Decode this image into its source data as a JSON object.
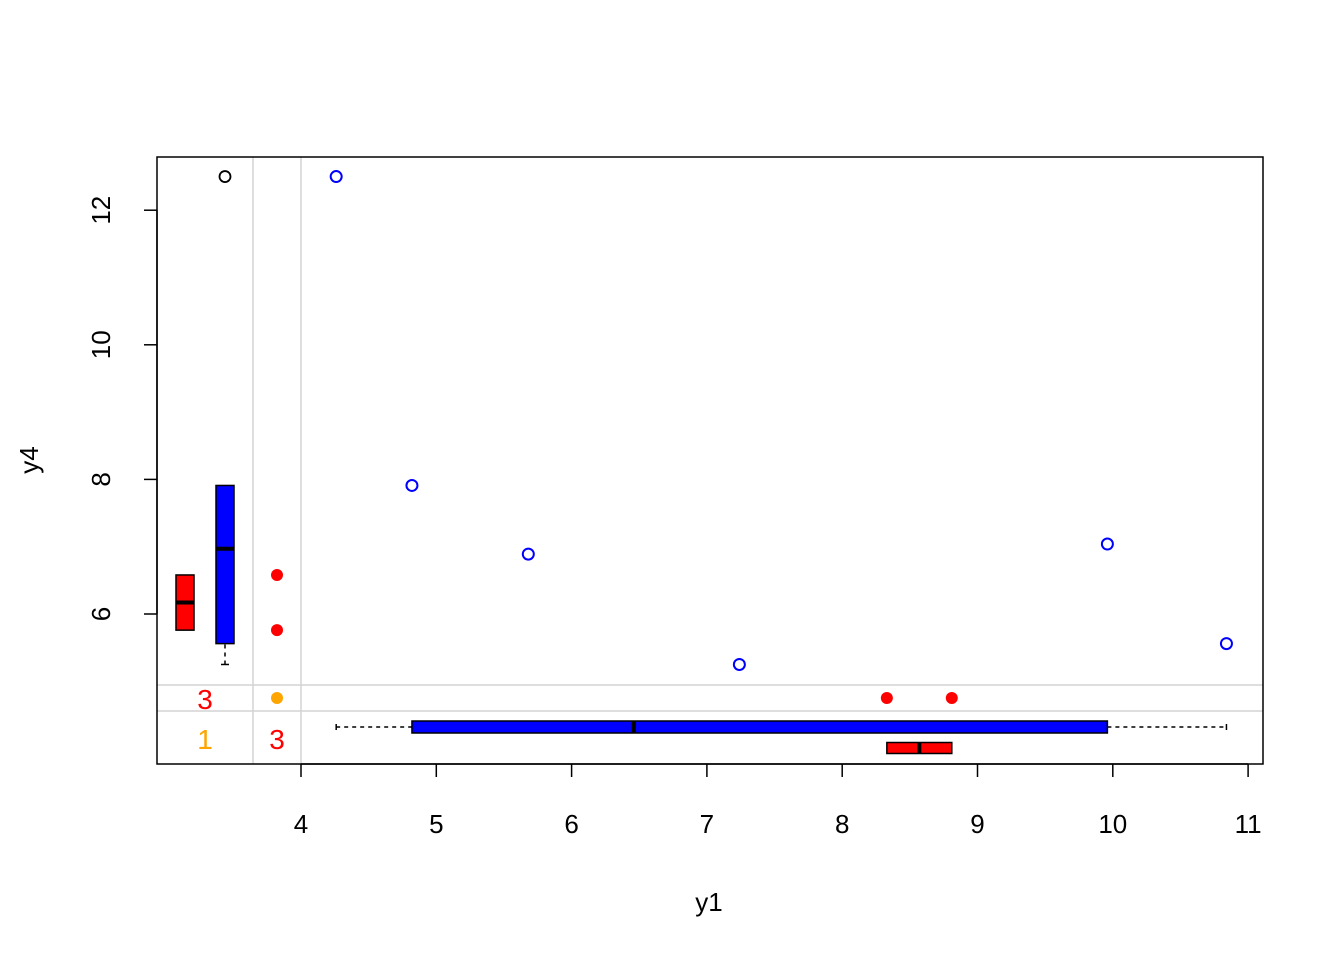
{
  "chart_data": {
    "type": "scatter",
    "title": "",
    "xlabel": "y1",
    "ylabel": "y4",
    "xlim": [
      2.93,
      11.1
    ],
    "ylim": [
      4.4,
      12.8
    ],
    "x_ticks": [
      4,
      5,
      6,
      7,
      8,
      9,
      10,
      11
    ],
    "x_tick_labels": [
      "4",
      "5",
      "6",
      "7",
      "8",
      "9",
      "10",
      "11"
    ],
    "y_ticks": [
      6,
      8,
      10,
      12
    ],
    "y_tick_labels": [
      "6",
      "8",
      "10",
      "12"
    ],
    "grid": false,
    "points": [
      {
        "x": 4.26,
        "y": 12.5
      },
      {
        "x": 4.82,
        "y": 7.91
      },
      {
        "x": 5.68,
        "y": 6.89
      },
      {
        "x": 7.24,
        "y": 5.25
      },
      {
        "x": 9.96,
        "y": 7.04
      },
      {
        "x": 10.84,
        "y": 5.56
      }
    ],
    "points_color": "#0000ff",
    "missing_y_points_x": [
      8.33,
      8.81
    ],
    "missing_x_points_y": [
      5.76,
      6.58
    ],
    "missing_both_count": 1,
    "missing_color": "#ff0000",
    "missing_both_color": "#ffa500",
    "counts": {
      "missing_y": "3",
      "missing_both": "1",
      "missing_x": "3"
    },
    "x_box_observed": {
      "min": 4.26,
      "q1": 4.82,
      "median": 6.46,
      "q3": 9.96,
      "max": 10.84
    },
    "x_box_missing": {
      "min": 8.33,
      "q1": 8.33,
      "median": 8.57,
      "q3": 8.81,
      "max": 8.81
    },
    "y_box_observed": {
      "min": 5.25,
      "q1": 5.56,
      "median": 6.97,
      "q3": 7.91,
      "max": 7.91,
      "outliers": [
        12.5
      ]
    },
    "y_box_missing": {
      "min": 5.76,
      "q1": 5.76,
      "median": 6.17,
      "q3": 6.58,
      "max": 6.58
    },
    "colors": {
      "observed": "#0000ff",
      "missing": "#ff0000",
      "both_missing": "#ffa500",
      "guide_lines": "#d3d3d3"
    }
  }
}
